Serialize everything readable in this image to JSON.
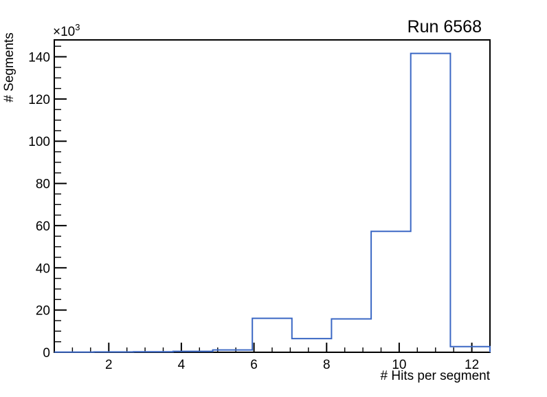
{
  "window": {
    "background": "#ffffff"
  },
  "chart_data": {
    "type": "bar",
    "subtype": "step-histogram-outline",
    "title": "Run 6568",
    "xlabel": "# Hits per segment",
    "ylabel": "# Segments",
    "y_scale": {
      "base": "×10",
      "exponent": "3"
    },
    "xlim": [
      0.5,
      12.5
    ],
    "ylim": [
      0,
      148000
    ],
    "bin_edges": [
      0.5,
      1.591,
      2.682,
      3.773,
      4.864,
      5.955,
      7.045,
      8.136,
      9.227,
      10.318,
      11.409,
      12.5
    ],
    "values": [
      100,
      150,
      250,
      450,
      1100,
      16100,
      6500,
      15800,
      57300,
      141600,
      2700
    ],
    "x_ticks": {
      "major": [
        2,
        4,
        6,
        8,
        10,
        12
      ],
      "major_labels": [
        "2",
        "4",
        "6",
        "8",
        "10",
        "12"
      ],
      "minor_step": 0.5
    },
    "y_ticks": {
      "major": [
        0,
        20000,
        40000,
        60000,
        80000,
        100000,
        120000,
        140000
      ],
      "major_labels": [
        "0",
        "20",
        "40",
        "60",
        "80",
        "100",
        "120",
        "140"
      ],
      "minor_step": 5000
    },
    "grid": false,
    "legend": null,
    "line_color": "#3a67c4",
    "axis_color": "#000000",
    "text_color": "#000000"
  }
}
